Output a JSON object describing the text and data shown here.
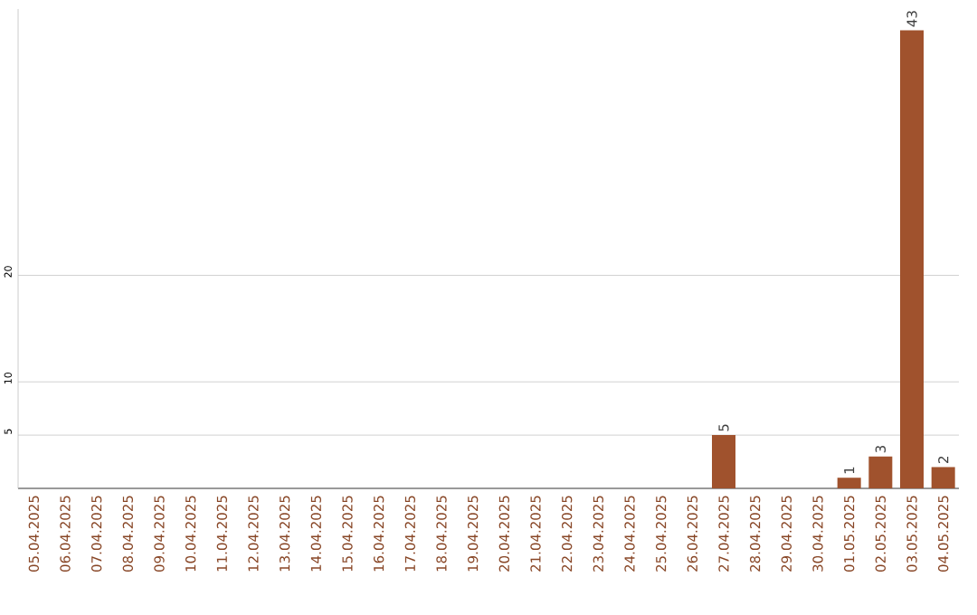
{
  "chart_data": {
    "type": "bar",
    "categories": [
      "05.04.2025",
      "06.04.2025",
      "07.04.2025",
      "08.04.2025",
      "09.04.2025",
      "10.04.2025",
      "11.04.2025",
      "12.04.2025",
      "13.04.2025",
      "14.04.2025",
      "15.04.2025",
      "16.04.2025",
      "17.04.2025",
      "18.04.2025",
      "19.04.2025",
      "20.04.2025",
      "21.04.2025",
      "22.04.2025",
      "23.04.2025",
      "24.04.2025",
      "25.04.2025",
      "26.04.2025",
      "27.04.2025",
      "28.04.2025",
      "29.04.2025",
      "30.04.2025",
      "01.05.2025",
      "02.05.2025",
      "03.05.2025",
      "04.05.2025"
    ],
    "values": [
      0,
      0,
      0,
      0,
      0,
      0,
      0,
      0,
      0,
      0,
      0,
      0,
      0,
      0,
      0,
      0,
      0,
      0,
      0,
      0,
      0,
      0,
      5,
      0,
      0,
      0,
      1,
      3,
      43,
      2
    ],
    "value_labels": [
      null,
      null,
      null,
      null,
      null,
      null,
      null,
      null,
      null,
      null,
      null,
      null,
      null,
      null,
      null,
      null,
      null,
      null,
      null,
      null,
      null,
      null,
      "5",
      null,
      null,
      null,
      "1",
      "3",
      "43",
      "2"
    ],
    "color": "#a0522d",
    "ylim": [
      0,
      45
    ],
    "yticks": [
      5,
      10,
      20
    ],
    "grid": "y"
  }
}
